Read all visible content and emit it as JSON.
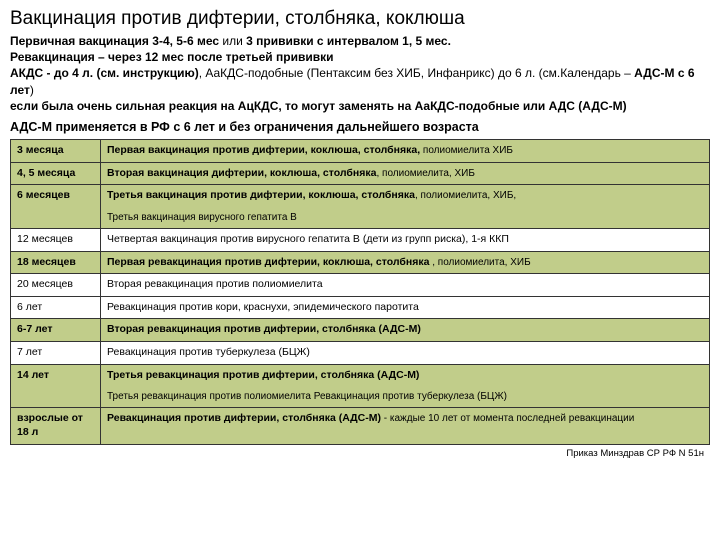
{
  "title": "Вакцинация против дифтерии, столбняка, коклюша",
  "intro_html": "<b>Первичная вакцинация 3-4, 5-6 мес</b> или <b>3 прививки с интервалом 1, 5 мес.</b><br><b>Ревакцинация – через 12 мес после третьей прививки</b><br><b>АКДС - до 4 л. (см. инструкцию)</b>, АаКДС-подобные (Пентаксим без ХИБ, Инфанрикс) до 6 л. (см.Календарь – <b>АДС-М с 6 лет</b>)<br><b>если была очень сильная реакция на АцКДС, то могут заменять на АаКДС-подобные или АДС (АДС-М)</b>",
  "subhead": "АДС-М применяется в РФ с 6 лет и без ограничения дальнейшего возраста",
  "rows": [
    {
      "hl": true,
      "age_b": true,
      "age": "3 месяца",
      "main": "Первая вакцинация против дифтерии, коклюша, столбняка,",
      "tail": " полиомиелита ХИБ"
    },
    {
      "hl": true,
      "age_b": true,
      "age": "4, 5 месяца",
      "main": "Вторая вакцинация дифтерии, коклюша, столбняка",
      "tail": ", полиомиелита, ХИБ"
    },
    {
      "hl": true,
      "age_b": true,
      "age": "6 месяцев",
      "main": "Третья вакцинация против дифтерии, коклюша, столбняка",
      "tail": ", полиомиелита, ХИБ,",
      "sub": "Третья вакцинация вирусного гепатита В"
    },
    {
      "hl": false,
      "age_b": false,
      "age": "12 месяцев",
      "main": "",
      "tail": "Четвертая вакцинация против вирусного гепатита В (дети из групп риска), 1-я ККП"
    },
    {
      "hl": true,
      "age_b": true,
      "age": "18 месяцев",
      "main": "Первая ревакцинация против дифтерии, коклюша, столбняка",
      "tail": " , полиомиелита, ХИБ"
    },
    {
      "hl": false,
      "age_b": false,
      "age": "20 месяцев",
      "main": "",
      "tail": "Вторая ревакцинация против полиомиелита"
    },
    {
      "hl": false,
      "age_b": false,
      "age": "6 лет",
      "main": "",
      "tail": "Ревакцинация против кори, краснухи, эпидемического паротита"
    },
    {
      "hl": true,
      "age_b": true,
      "age": "6-7 лет",
      "main": "Вторая ревакцинация против дифтерии,  столбняка (АДС-М)",
      "tail": ""
    },
    {
      "hl": false,
      "age_b": false,
      "age": "7 лет",
      "main": "",
      "tail": "Ревакцинация против туберкулеза (БЦЖ)"
    },
    {
      "hl": true,
      "age_b": true,
      "age": "14 лет",
      "main": "Третья ревакцинация против дифтерии, столбняка (АДС-М)",
      "tail": "",
      "sub": "Третья ревакцинация против полиомиелита Ревакцинация против туберкулеза (БЦЖ)"
    },
    {
      "hl": true,
      "age_b": true,
      "age": "взрослые от 18 л",
      "main": "Ревакцинация против дифтерии, столбняка (АДС-М)",
      "tail": " - каждые 10 лет от момента последней ревакцинации"
    }
  ],
  "footer": "Приказ Минздрав СР РФ N  51н",
  "colors": {
    "highlight": "#c1cd8a",
    "border": "#333333",
    "bg": "#ffffff"
  }
}
